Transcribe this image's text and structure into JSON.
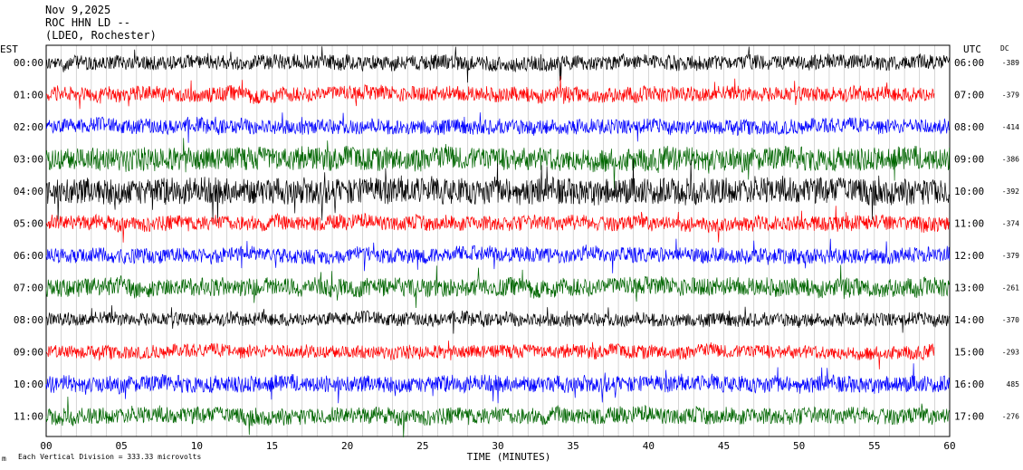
{
  "header": {
    "date": "Nov 9,2025",
    "station": "ROC HHN LD --",
    "network": "(LDEO, Rochester)"
  },
  "left_tz": "EST",
  "right_tz": "UTC",
  "dc_header": "DC",
  "footer": {
    "scale_note": "Each Vertical Division = 333.33 microvolts",
    "corner_mark": "m"
  },
  "chart_data": {
    "type": "line",
    "xlabel": "TIME (MINUTES)",
    "xlim": [
      0,
      60
    ],
    "x_ticks": [
      "00",
      "05",
      "10",
      "15",
      "20",
      "25",
      "30",
      "35",
      "40",
      "45",
      "50",
      "55",
      "60"
    ],
    "grid": "vertical lines every minute",
    "series": [
      {
        "est": "00:00",
        "utc": "06:00",
        "dc": "-389",
        "color": "#000000",
        "end_min": 60,
        "amp": 0.9
      },
      {
        "est": "01:00",
        "utc": "07:00",
        "dc": "-379",
        "color": "#ff0000",
        "end_min": 59,
        "amp": 0.9
      },
      {
        "est": "02:00",
        "utc": "08:00",
        "dc": "-414",
        "color": "#0000ff",
        "end_min": 60,
        "amp": 0.9
      },
      {
        "est": "03:00",
        "utc": "09:00",
        "dc": "-386",
        "color": "#006600",
        "end_min": 60,
        "amp": 1.4
      },
      {
        "est": "04:00",
        "utc": "10:00",
        "dc": "-392",
        "color": "#000000",
        "end_min": 60,
        "amp": 1.6
      },
      {
        "est": "05:00",
        "utc": "11:00",
        "dc": "-374",
        "color": "#ff0000",
        "end_min": 60,
        "amp": 0.9
      },
      {
        "est": "06:00",
        "utc": "12:00",
        "dc": "-379",
        "color": "#0000ff",
        "end_min": 60,
        "amp": 0.9
      },
      {
        "est": "07:00",
        "utc": "13:00",
        "dc": "-261",
        "color": "#006600",
        "end_min": 60,
        "amp": 1.1
      },
      {
        "est": "08:00",
        "utc": "14:00",
        "dc": "-370",
        "color": "#000000",
        "end_min": 60,
        "amp": 0.8
      },
      {
        "est": "09:00",
        "utc": "15:00",
        "dc": "-293",
        "color": "#ff0000",
        "end_min": 59,
        "amp": 0.8
      },
      {
        "est": "10:00",
        "utc": "16:00",
        "dc": "485",
        "color": "#0000ff",
        "end_min": 60,
        "amp": 1.0
      },
      {
        "est": "11:00",
        "utc": "17:00",
        "dc": "-276",
        "color": "#006600",
        "end_min": 60,
        "amp": 1.0
      }
    ]
  }
}
